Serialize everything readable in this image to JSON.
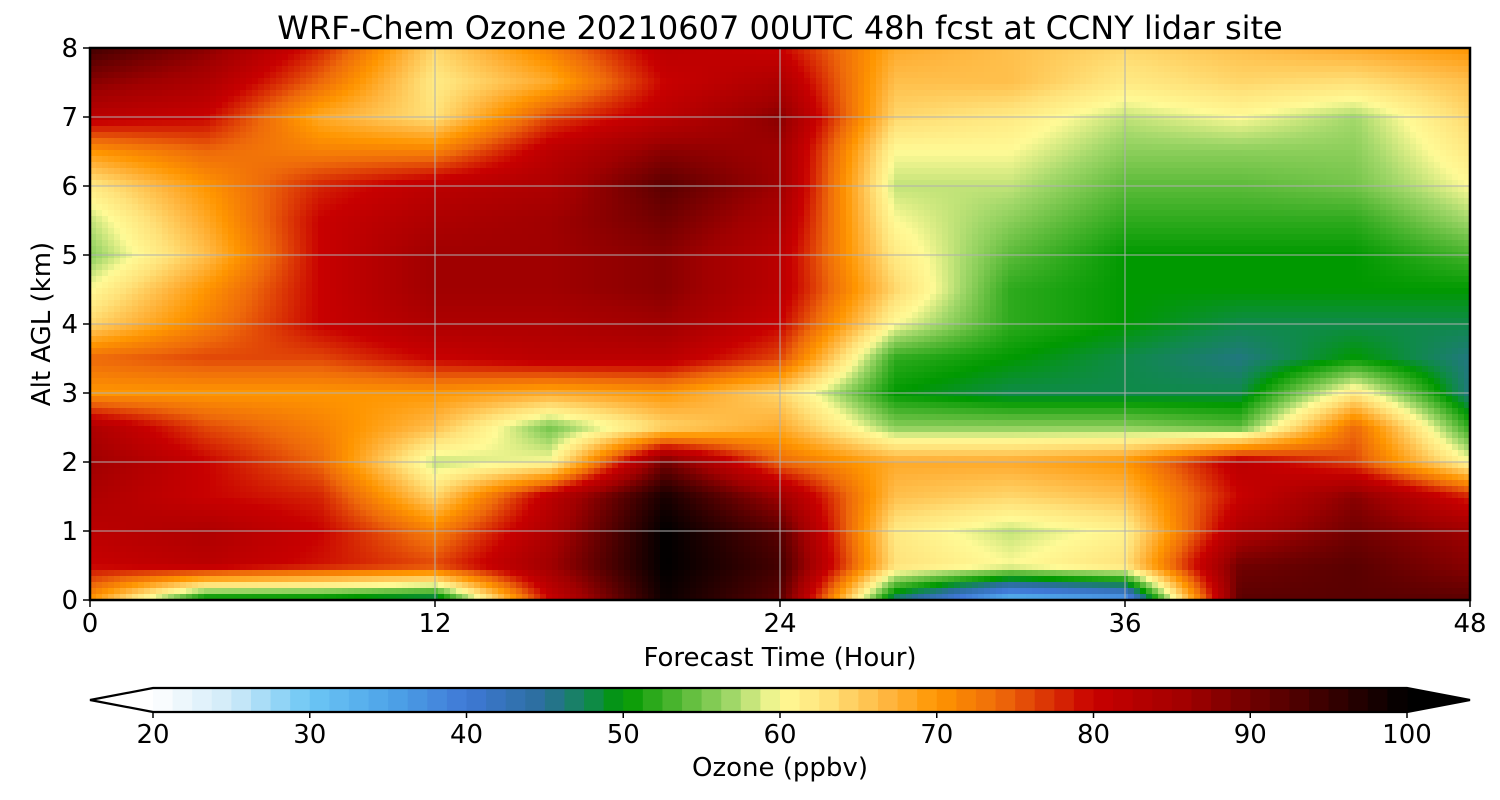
{
  "chart_data": {
    "type": "heatmap",
    "title": "WRF-Chem Ozone  20210607 00UTC 48h fcst at CCNY lidar site",
    "xlabel": "Forecast Time (Hour)",
    "ylabel": "Alt AGL (km)",
    "xlim": [
      0,
      48
    ],
    "ylim": [
      0,
      8
    ],
    "xticks": [
      0,
      12,
      24,
      36,
      48
    ],
    "yticks": [
      0,
      1,
      2,
      3,
      4,
      5,
      6,
      7,
      8
    ],
    "grid": true,
    "colorbar": {
      "label": "Ozone  (ppbv)",
      "range": [
        20,
        100
      ],
      "ticks": [
        20,
        30,
        40,
        50,
        60,
        70,
        80,
        90,
        100
      ],
      "extend": "both",
      "stops": [
        {
          "v": 20,
          "c": "#ffffff"
        },
        {
          "v": 25,
          "c": "#cfeaf8"
        },
        {
          "v": 30,
          "c": "#6cc6f5"
        },
        {
          "v": 35,
          "c": "#4ea4e8"
        },
        {
          "v": 40,
          "c": "#3f78d6"
        },
        {
          "v": 45,
          "c": "#2a6e9a"
        },
        {
          "v": 48,
          "c": "#0f8a4a"
        },
        {
          "v": 50,
          "c": "#009900"
        },
        {
          "v": 54,
          "c": "#5cbb3a"
        },
        {
          "v": 57,
          "c": "#a3d86a"
        },
        {
          "v": 60,
          "c": "#fffa96"
        },
        {
          "v": 63,
          "c": "#ffe27a"
        },
        {
          "v": 67,
          "c": "#ffb43c"
        },
        {
          "v": 70,
          "c": "#ff9600"
        },
        {
          "v": 74,
          "c": "#ee6a0a"
        },
        {
          "v": 80,
          "c": "#c80000"
        },
        {
          "v": 86,
          "c": "#a00000"
        },
        {
          "v": 92,
          "c": "#5a0000"
        },
        {
          "v": 100,
          "c": "#000000"
        }
      ]
    },
    "x": [
      0,
      4,
      8,
      12,
      16,
      20,
      24,
      28,
      32,
      36,
      40,
      44,
      48
    ],
    "y": [
      0,
      0.5,
      1,
      1.5,
      2,
      2.5,
      3,
      3.5,
      4,
      4.5,
      5,
      5.5,
      6,
      6.5,
      7,
      7.5,
      8
    ],
    "z": [
      [
        70,
        48,
        48,
        46,
        80,
        99,
        92,
        46,
        32,
        35,
        92,
        92,
        92
      ],
      [
        80,
        82,
        79,
        76,
        86,
        100,
        94,
        63,
        60,
        63,
        90,
        92,
        88
      ],
      [
        82,
        84,
        80,
        72,
        84,
        100,
        92,
        62,
        58,
        61,
        84,
        90,
        86
      ],
      [
        84,
        80,
        78,
        64,
        82,
        98,
        86,
        66,
        64,
        66,
        80,
        88,
        78
      ],
      [
        86,
        80,
        74,
        58,
        60,
        90,
        74,
        68,
        68,
        70,
        82,
        76,
        60
      ],
      [
        84,
        76,
        72,
        66,
        55,
        64,
        68,
        56,
        56,
        56,
        54,
        74,
        52
      ],
      [
        70,
        70,
        70,
        70,
        68,
        70,
        64,
        50,
        48,
        48,
        48,
        62,
        46
      ],
      [
        74,
        76,
        76,
        80,
        82,
        82,
        76,
        52,
        50,
        48,
        46,
        50,
        46
      ],
      [
        64,
        72,
        80,
        84,
        84,
        86,
        80,
        60,
        52,
        50,
        48,
        48,
        48
      ],
      [
        60,
        70,
        80,
        86,
        86,
        88,
        82,
        64,
        52,
        50,
        50,
        50,
        50
      ],
      [
        56,
        66,
        80,
        86,
        86,
        88,
        82,
        62,
        54,
        50,
        50,
        50,
        53
      ],
      [
        58,
        68,
        80,
        84,
        86,
        90,
        84,
        60,
        56,
        52,
        52,
        52,
        57
      ],
      [
        62,
        70,
        78,
        82,
        84,
        92,
        86,
        58,
        58,
        54,
        54,
        55,
        60
      ],
      [
        70,
        74,
        72,
        72,
        82,
        88,
        86,
        60,
        60,
        56,
        56,
        56,
        62
      ],
      [
        82,
        80,
        68,
        63,
        76,
        82,
        88,
        64,
        62,
        58,
        60,
        57,
        64
      ],
      [
        88,
        84,
        74,
        62,
        68,
        80,
        84,
        66,
        66,
        62,
        64,
        63,
        66
      ],
      [
        94,
        88,
        78,
        64,
        72,
        82,
        80,
        68,
        66,
        64,
        66,
        68,
        70
      ]
    ]
  }
}
